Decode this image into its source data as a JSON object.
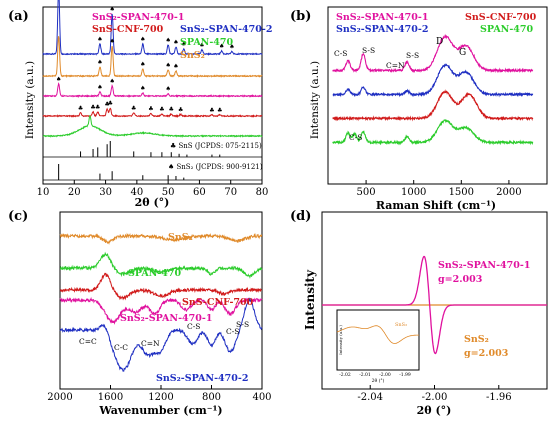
{
  "colors": {
    "magenta": "#e0119e",
    "red": "#d11a1a",
    "blue": "#1f2fc2",
    "green": "#2ccc2c",
    "orange": "#e08a2a",
    "black": "#000000"
  },
  "chart_data": [
    {
      "panel": "(a)",
      "type": "line",
      "xlabel": "2θ (°)",
      "ylabel": "Intensity (a.u.)",
      "xlim": [
        10,
        80
      ],
      "xticks": [
        10,
        20,
        30,
        40,
        50,
        60,
        70,
        80
      ],
      "legend": [
        {
          "name": "SnS₂-SPAN-470-1",
          "color": "magenta"
        },
        {
          "name": "SnS₂-SPAN-470-2",
          "color": "blue"
        },
        {
          "name": "SnS-CNF-700",
          "color": "red"
        },
        {
          "name": "SPAN-470",
          "color": "green"
        },
        {
          "name": "SnS₂",
          "color": "orange"
        }
      ],
      "series": [
        {
          "name": "SnS₂-SPAN-470-2",
          "color": "blue",
          "offset": 5.0,
          "peaks": [
            [
              15.0,
              3.2
            ],
            [
              28.2,
              0.5
            ],
            [
              32.1,
              2.0
            ],
            [
              41.9,
              0.5
            ],
            [
              50.0,
              0.45
            ],
            [
              52.5,
              0.35
            ],
            [
              55.0,
              0.25
            ],
            [
              60.8,
              0.2
            ],
            [
              67.1,
              0.15
            ],
            [
              70.4,
              0.12
            ]
          ]
        },
        {
          "name": "SnS₂",
          "color": "orange",
          "offset": 3.9,
          "peaks": [
            [
              15.0,
              2.0
            ],
            [
              28.2,
              0.45
            ],
            [
              32.1,
              1.5
            ],
            [
              41.9,
              0.35
            ],
            [
              50.0,
              0.3
            ],
            [
              52.5,
              0.25
            ]
          ]
        },
        {
          "name": "SnS₂-SPAN-470-1",
          "color": "magenta",
          "offset": 2.9,
          "peaks": [
            [
              15.0,
              0.6
            ],
            [
              28.2,
              0.2
            ],
            [
              32.1,
              0.5
            ],
            [
              41.9,
              0.15
            ],
            [
              50.0,
              0.12
            ]
          ]
        },
        {
          "name": "SnS-CNF-700",
          "color": "red",
          "offset": 1.9,
          "peaks": [
            [
              22.0,
              0.15
            ],
            [
              26.0,
              0.2
            ],
            [
              27.5,
              0.2
            ],
            [
              30.5,
              0.35
            ],
            [
              31.5,
              0.4
            ],
            [
              39.0,
              0.15
            ],
            [
              44.5,
              0.12
            ],
            [
              48.0,
              0.1
            ],
            [
              51.0,
              0.1
            ],
            [
              54.0,
              0.08
            ],
            [
              64.0,
              0.06
            ],
            [
              66.5,
              0.06
            ]
          ]
        },
        {
          "name": "SPAN-470",
          "color": "green",
          "offset": 0.9,
          "peaks": [
            [
              25.0,
              0.5
            ]
          ]
        }
      ],
      "marker_labels": {
        "snv": "♣",
        "sns2": "♠"
      },
      "references": [
        {
          "label": "♣ SnS (JCPDS: 075-2115)",
          "lines": [
            [
              22.0,
              0.35
            ],
            [
              26.0,
              0.5
            ],
            [
              27.5,
              0.6
            ],
            [
              30.5,
              0.8
            ],
            [
              31.5,
              1.0
            ],
            [
              39.0,
              0.35
            ],
            [
              44.5,
              0.3
            ],
            [
              48.0,
              0.3
            ],
            [
              51.0,
              0.3
            ],
            [
              53.5,
              0.2
            ],
            [
              56.0,
              0.15
            ],
            [
              64.0,
              0.15
            ],
            [
              66.5,
              0.15
            ]
          ]
        },
        {
          "label": "♠ SnS₂ (JCPDS: 900-9121)",
          "lines": [
            [
              15.0,
              1.0
            ],
            [
              28.2,
              0.4
            ],
            [
              32.1,
              0.55
            ],
            [
              41.9,
              0.3
            ],
            [
              50.0,
              0.3
            ],
            [
              52.5,
              0.25
            ],
            [
              55.0,
              0.15
            ]
          ]
        }
      ]
    },
    {
      "panel": "(b)",
      "type": "line",
      "xlabel": "Raman Shift (cm⁻¹)",
      "ylabel": "Intensity (a.u.)",
      "xlim": [
        100,
        2400
      ],
      "xticks": [
        500,
        1000,
        1500,
        2000
      ],
      "legend": [
        {
          "name": "SnS₂-SPAN-470-1",
          "color": "magenta"
        },
        {
          "name": "SnS-CNF-700",
          "color": "red"
        },
        {
          "name": "SnS₂-SPAN-470-2",
          "color": "blue"
        },
        {
          "name": "SPAN-470",
          "color": "green"
        }
      ],
      "annotations": [
        "C-S",
        "S-S",
        "C=N",
        "S-S",
        "D",
        "G",
        "C-S"
      ],
      "series": [
        {
          "name": "SnS₂-SPAN-470-1",
          "color": "magenta",
          "offset": 3.9,
          "peaks": [
            [
              310,
              0.4
            ],
            [
              470,
              0.7
            ],
            [
              930,
              0.35
            ],
            [
              1330,
              1.4
            ],
            [
              1550,
              1.0
            ]
          ]
        },
        {
          "name": "SnS₂-SPAN-470-2",
          "color": "blue",
          "offset": 2.9,
          "peaks": [
            [
              310,
              0.2
            ],
            [
              470,
              0.3
            ],
            [
              930,
              0.15
            ],
            [
              1330,
              1.2
            ],
            [
              1550,
              0.9
            ]
          ]
        },
        {
          "name": "SnS-CNF-700",
          "color": "red",
          "offset": 1.9,
          "peaks": [
            [
              1330,
              1.1
            ],
            [
              1580,
              1.0
            ]
          ]
        },
        {
          "name": "SPAN-470",
          "color": "green",
          "offset": 0.9,
          "peaks": [
            [
              310,
              0.4
            ],
            [
              380,
              0.35
            ],
            [
              470,
              0.45
            ],
            [
              930,
              0.25
            ],
            [
              1330,
              0.9
            ],
            [
              1550,
              0.6
            ]
          ]
        }
      ]
    },
    {
      "panel": "(c)",
      "type": "line",
      "xlabel": "Wavenumber (cm⁻¹)",
      "xlim": [
        2000,
        400
      ],
      "xticks": [
        2000,
        1600,
        1200,
        800,
        400
      ],
      "labels": [
        {
          "name": "SnS₂",
          "color": "orange"
        },
        {
          "name": "SPAN-470",
          "color": "green"
        },
        {
          "name": "SnS-CNF-700",
          "color": "red"
        },
        {
          "name": "SnS₂-SPAN-470-1",
          "color": "magenta"
        },
        {
          "name": "SnS₂-SPAN-470-2",
          "color": "blue"
        }
      ],
      "annotations": [
        "C=C",
        "C-C",
        "C=N",
        "C-S",
        "C-S",
        "S-S"
      ]
    },
    {
      "panel": "(d)",
      "type": "line",
      "xlabel": "2θ (°)",
      "ylabel": "Intensity",
      "xlim": [
        -2.07,
        -1.93
      ],
      "xticks": [
        -2.04,
        -2.0,
        -1.96
      ],
      "labels": [
        {
          "name": "SnS₂-SPAN-470-1",
          "g": "g=2.003",
          "color": "magenta"
        },
        {
          "name": "SnS₂",
          "g": "g=2.003",
          "color": "orange"
        }
      ],
      "inset": {
        "xticks": [
          "-2.02",
          "-2.01",
          "-2.00",
          "-1.99"
        ],
        "xlabel": "2θ (°)",
        "ylabel": "Intensity (a.u.)",
        "label": "SnS₂"
      }
    }
  ]
}
